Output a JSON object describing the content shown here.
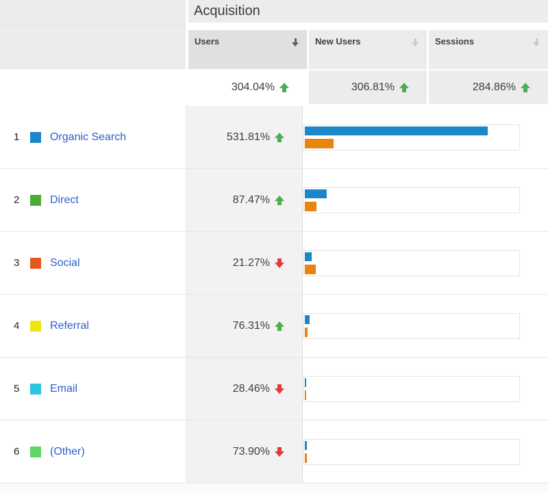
{
  "title": "Acquisition",
  "columns": [
    {
      "label": "Users",
      "sort": "active"
    },
    {
      "label": "New Users",
      "sort": "inactive"
    },
    {
      "label": "Sessions",
      "sort": "inactive"
    }
  ],
  "summary": {
    "users": {
      "value": "304.04%",
      "direction": "up"
    },
    "new_users": {
      "value": "306.81%",
      "direction": "up"
    },
    "sessions": {
      "value": "284.86%",
      "direction": "up"
    }
  },
  "rows": [
    {
      "index": "1",
      "label": "Organic Search",
      "swatch": "#1d86c8",
      "users_change": {
        "value": "531.81%",
        "direction": "up"
      },
      "bars": {
        "primary_pct": 85.7,
        "secondary_pct": 13.4
      }
    },
    {
      "index": "2",
      "label": "Direct",
      "swatch": "#4aab30",
      "users_change": {
        "value": "87.47%",
        "direction": "up"
      },
      "bars": {
        "primary_pct": 10.2,
        "secondary_pct": 5.4
      }
    },
    {
      "index": "3",
      "label": "Social",
      "swatch": "#e4571e",
      "users_change": {
        "value": "21.27%",
        "direction": "down"
      },
      "bars": {
        "primary_pct": 3.2,
        "secondary_pct": 5.1
      }
    },
    {
      "index": "4",
      "label": "Referral",
      "swatch": "#ece70d",
      "users_change": {
        "value": "76.31%",
        "direction": "up"
      },
      "bars": {
        "primary_pct": 2.2,
        "secondary_pct": 1.3
      }
    },
    {
      "index": "5",
      "label": "Email",
      "swatch": "#2fc3e2",
      "users_change": {
        "value": "28.46%",
        "direction": "down"
      },
      "bars": {
        "primary_pct": 0.8,
        "secondary_pct": 0.8
      }
    },
    {
      "index": "6",
      "label": "(Other)",
      "swatch": "#60d566",
      "users_change": {
        "value": "73.90%",
        "direction": "down"
      },
      "bars": {
        "primary_pct": 1.0,
        "secondary_pct": 1.0
      }
    }
  ],
  "colors": {
    "bar_primary": "#1d86c8",
    "bar_secondary": "#e8850e",
    "positive": "#4caf50",
    "negative": "#e53935",
    "link": "#2d5fcc"
  }
}
